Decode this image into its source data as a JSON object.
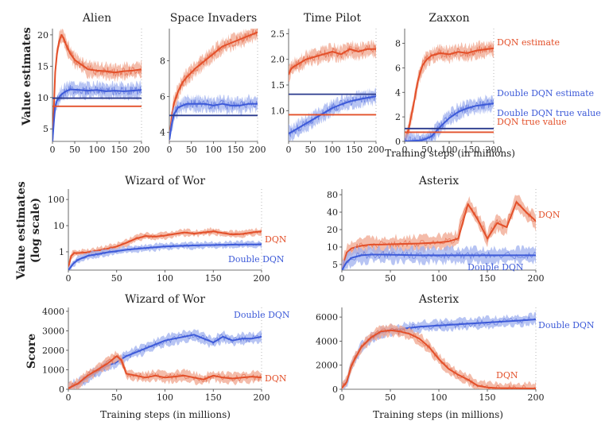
{
  "figure": {
    "ylabel_top": "Value estimates",
    "ylabel_mid_line1": "Value estimates",
    "ylabel_mid_line2": "(log scale)",
    "ylabel_bottom": "Score",
    "xlabel": "Training steps (in millions)"
  },
  "colors": {
    "dqn": "#e3502a",
    "double_dqn": "#3d5ad8",
    "dqn_band": "#f0a58e",
    "ddqn_band": "#9fb0ef",
    "true_line_dark": "#2a3a8c"
  },
  "chart_data": [
    {
      "id": "alien",
      "type": "line",
      "title": "Alien",
      "xlim": [
        0,
        200
      ],
      "ylim": [
        3,
        21
      ],
      "xticks": [
        0,
        50,
        100,
        150,
        200
      ],
      "yticks": [
        5,
        10,
        15,
        20
      ],
      "xtick_labels": [
        "0",
        "50",
        "100",
        "150",
        "200"
      ],
      "ytick_labels": [
        "5",
        "10",
        "15",
        "20"
      ],
      "series": [
        {
          "x": [
            0,
            3,
            6,
            10,
            15,
            20,
            25,
            30,
            40,
            50,
            60,
            70,
            80,
            100,
            120,
            140,
            160,
            180,
            200
          ],
          "y": [
            3,
            8,
            14,
            17,
            19,
            20,
            19.5,
            18.5,
            17,
            16,
            15.5,
            15,
            14.5,
            14.3,
            14.2,
            14,
            14.2,
            14.3,
            14.5
          ],
          "color": "dqn"
        },
        {
          "x": [
            0,
            3,
            6,
            10,
            20,
            30,
            40,
            60,
            80,
            100,
            120,
            140,
            160,
            180,
            200
          ],
          "y": [
            3,
            6,
            8.5,
            9.5,
            10.5,
            11,
            11.3,
            11.2,
            11.1,
            11.2,
            11,
            11.1,
            11,
            11.1,
            11.2
          ],
          "color": "double_dqn"
        }
      ],
      "hlines": [
        {
          "y": 9.9,
          "color": "true_line_dark"
        },
        {
          "y": 8.6,
          "color": "dqn"
        }
      ]
    },
    {
      "id": "space-invaders",
      "type": "line",
      "title": "Space Invaders",
      "xlim": [
        0,
        200
      ],
      "ylim": [
        3.5,
        9.8
      ],
      "xticks": [
        0,
        50,
        100,
        150,
        200
      ],
      "yticks": [
        4,
        6,
        8
      ],
      "xtick_labels": [
        "0",
        "50",
        "100",
        "150",
        "200"
      ],
      "ytick_labels": [
        "4",
        "6",
        "8"
      ],
      "series": [
        {
          "x": [
            0,
            5,
            10,
            20,
            30,
            40,
            60,
            80,
            100,
            120,
            140,
            160,
            180,
            200
          ],
          "y": [
            3.6,
            4.8,
            5.6,
            6.3,
            6.8,
            7.1,
            7.6,
            8.0,
            8.4,
            8.8,
            9.0,
            9.2,
            9.4,
            9.6
          ],
          "color": "dqn"
        },
        {
          "x": [
            0,
            5,
            10,
            20,
            30,
            40,
            60,
            80,
            100,
            120,
            140,
            160,
            180,
            200
          ],
          "y": [
            3.6,
            4.4,
            5.0,
            5.4,
            5.5,
            5.6,
            5.6,
            5.6,
            5.5,
            5.6,
            5.5,
            5.5,
            5.6,
            5.6
          ],
          "color": "double_dqn"
        }
      ],
      "hlines": [
        {
          "y": 4.95,
          "color": "true_line_dark"
        }
      ]
    },
    {
      "id": "time-pilot",
      "type": "line",
      "title": "Time Pilot",
      "xlim": [
        0,
        200
      ],
      "ylim": [
        0.4,
        2.6
      ],
      "xticks": [
        0,
        50,
        100,
        150,
        200
      ],
      "yticks": [
        1.0,
        1.5,
        2.0,
        2.5
      ],
      "xtick_labels": [
        "0",
        "50",
        "100",
        "150",
        "200"
      ],
      "ytick_labels": [
        "1.0",
        "1.5",
        "2.0",
        "2.5"
      ],
      "series": [
        {
          "x": [
            0,
            5,
            10,
            20,
            30,
            40,
            60,
            80,
            100,
            120,
            140,
            160,
            180,
            200
          ],
          "y": [
            1.7,
            1.8,
            1.85,
            1.9,
            1.95,
            2.0,
            2.05,
            2.1,
            2.15,
            2.1,
            2.2,
            2.15,
            2.2,
            2.2
          ],
          "color": "dqn"
        },
        {
          "x": [
            0,
            10,
            20,
            40,
            60,
            80,
            100,
            120,
            140,
            160,
            180,
            200
          ],
          "y": [
            0.55,
            0.6,
            0.65,
            0.75,
            0.85,
            0.95,
            1.05,
            1.12,
            1.18,
            1.22,
            1.25,
            1.28
          ],
          "color": "double_dqn"
        }
      ],
      "hlines": [
        {
          "y": 1.32,
          "color": "true_line_dark"
        },
        {
          "y": 0.92,
          "color": "dqn"
        }
      ]
    },
    {
      "id": "zaxxon",
      "type": "line",
      "title": "Zaxxon",
      "xlim": [
        0,
        200
      ],
      "ylim": [
        0,
        9.2
      ],
      "xticks": [
        0,
        50,
        100,
        150,
        200
      ],
      "yticks": [
        0,
        2,
        4,
        6,
        8
      ],
      "xtick_labels": [
        "0",
        "50",
        "100",
        "150",
        "200"
      ],
      "ytick_labels": [
        "0",
        "2",
        "4",
        "6",
        "8"
      ],
      "series": [
        {
          "name": "DQN estimate",
          "x": [
            0,
            5,
            10,
            20,
            30,
            40,
            50,
            60,
            80,
            100,
            120,
            140,
            160,
            180,
            200
          ],
          "y": [
            0,
            0.5,
            1.2,
            3.0,
            5.0,
            6.2,
            6.7,
            7.0,
            7.2,
            7.1,
            7.3,
            7.2,
            7.4,
            7.5,
            7.6
          ],
          "color": "dqn"
        },
        {
          "name": "Double DQN estimate",
          "x": [
            0,
            20,
            40,
            60,
            80,
            100,
            120,
            140,
            160,
            180,
            200
          ],
          "y": [
            0,
            0.05,
            0.1,
            0.4,
            1.2,
            1.9,
            2.4,
            2.7,
            2.9,
            3.0,
            3.1
          ],
          "color": "double_dqn"
        }
      ],
      "hlines": [
        {
          "y": 1.05,
          "color": "true_line_dark",
          "label": "Double DQN true value"
        },
        {
          "y": 0.75,
          "color": "dqn",
          "label": "DQN true value"
        }
      ]
    },
    {
      "id": "wizard-of-wor-value",
      "type": "line",
      "title": "Wizard of Wor",
      "yscale": "log",
      "xlim": [
        0,
        200
      ],
      "ylim": [
        0.2,
        250
      ],
      "xticks": [
        0,
        50,
        100,
        150,
        200
      ],
      "yticks": [
        1,
        10,
        100
      ],
      "xtick_labels": [
        "0",
        "50",
        "100",
        "150",
        "200"
      ],
      "ytick_labels": [
        "1",
        "10",
        "100"
      ],
      "series": [
        {
          "name": "DQN",
          "x": [
            0,
            3,
            6,
            10,
            20,
            30,
            40,
            50,
            60,
            70,
            80,
            90,
            100,
            110,
            120,
            130,
            140,
            150,
            160,
            170,
            180,
            190,
            200
          ],
          "y": [
            0.25,
            0.7,
            0.9,
            0.9,
            0.95,
            1.1,
            1.3,
            1.6,
            2.2,
            3.2,
            4.0,
            3.8,
            4.2,
            4.8,
            5.5,
            5.0,
            5.5,
            6.0,
            5.2,
            4.6,
            4.8,
            5.5,
            6.0
          ],
          "color": "dqn"
        },
        {
          "name": "Double DQN",
          "x": [
            0,
            5,
            10,
            20,
            40,
            60,
            80,
            100,
            120,
            140,
            160,
            180,
            200
          ],
          "y": [
            0.2,
            0.35,
            0.5,
            0.7,
            0.95,
            1.2,
            1.4,
            1.6,
            1.7,
            1.8,
            1.85,
            1.9,
            1.9
          ],
          "color": "double_dqn"
        }
      ]
    },
    {
      "id": "asterix-value",
      "type": "line",
      "title": "Asterix",
      "yscale": "log",
      "xlim": [
        0,
        200
      ],
      "ylim": [
        4,
        100
      ],
      "xticks": [
        0,
        50,
        100,
        150,
        200
      ],
      "yticks": [
        5,
        10,
        20,
        40,
        80
      ],
      "xtick_labels": [
        "0",
        "50",
        "100",
        "150",
        "200"
      ],
      "ytick_labels": [
        "5",
        "10",
        "20",
        "40",
        "80"
      ],
      "series": [
        {
          "name": "DQN",
          "x": [
            0,
            5,
            10,
            20,
            30,
            40,
            60,
            80,
            100,
            110,
            120,
            130,
            140,
            150,
            160,
            170,
            180,
            190,
            200
          ],
          "y": [
            4,
            8,
            9.5,
            10.5,
            11,
            11,
            11.3,
            11.5,
            12,
            12.5,
            14,
            55,
            30,
            14,
            26,
            22,
            60,
            40,
            28
          ],
          "color": "dqn"
        },
        {
          "name": "Double DQN",
          "x": [
            0,
            5,
            10,
            20,
            30,
            40,
            60,
            80,
            100,
            120,
            140,
            160,
            180,
            200
          ],
          "y": [
            4,
            5.5,
            6.5,
            7.2,
            7.4,
            7.4,
            7.3,
            7.2,
            7.2,
            7.2,
            7.2,
            7.2,
            7.2,
            7.2
          ],
          "color": "double_dqn"
        }
      ]
    },
    {
      "id": "wizard-of-wor-score",
      "type": "line",
      "title": "Wizard of Wor",
      "xlim": [
        0,
        200
      ],
      "ylim": [
        0,
        4200
      ],
      "xticks": [
        0,
        50,
        100,
        150,
        200
      ],
      "yticks": [
        0,
        1000,
        2000,
        3000,
        4000
      ],
      "xtick_labels": [
        "0",
        "50",
        "100",
        "150",
        "200"
      ],
      "ytick_labels": [
        "0",
        "1000",
        "2000",
        "3000",
        "4000"
      ],
      "series": [
        {
          "name": "Double DQN",
          "x": [
            0,
            10,
            20,
            30,
            40,
            50,
            60,
            70,
            80,
            90,
            100,
            110,
            120,
            130,
            140,
            150,
            160,
            170,
            180,
            190,
            200
          ],
          "y": [
            50,
            300,
            600,
            900,
            1200,
            1400,
            1700,
            1900,
            2100,
            2300,
            2500,
            2600,
            2700,
            2800,
            2600,
            2400,
            2700,
            2500,
            2600,
            2600,
            2700
          ],
          "color": "double_dqn"
        },
        {
          "name": "DQN",
          "x": [
            0,
            10,
            20,
            30,
            40,
            50,
            55,
            60,
            70,
            80,
            90,
            100,
            110,
            120,
            130,
            140,
            150,
            160,
            170,
            180,
            190,
            200
          ],
          "y": [
            50,
            300,
            700,
            1000,
            1300,
            1700,
            1500,
            800,
            700,
            600,
            700,
            600,
            650,
            700,
            600,
            500,
            700,
            600,
            550,
            600,
            650,
            600
          ],
          "color": "dqn"
        }
      ]
    },
    {
      "id": "asterix-score",
      "type": "line",
      "title": "Asterix",
      "xlim": [
        0,
        200
      ],
      "ylim": [
        0,
        6800
      ],
      "xticks": [
        0,
        50,
        100,
        150,
        200
      ],
      "yticks": [
        0,
        2000,
        4000,
        6000
      ],
      "xtick_labels": [
        "0",
        "50",
        "100",
        "150",
        "200"
      ],
      "ytick_labels": [
        "0",
        "2000",
        "4000",
        "6000"
      ],
      "series": [
        {
          "name": "Double DQN",
          "x": [
            0,
            5,
            10,
            20,
            30,
            40,
            50,
            60,
            80,
            100,
            120,
            140,
            160,
            180,
            200
          ],
          "y": [
            100,
            600,
            2000,
            3500,
            4200,
            4700,
            4900,
            5000,
            5200,
            5300,
            5400,
            5500,
            5600,
            5700,
            5800
          ],
          "color": "double_dqn"
        },
        {
          "name": "DQN",
          "x": [
            0,
            5,
            10,
            20,
            30,
            40,
            50,
            60,
            70,
            80,
            90,
            100,
            110,
            120,
            130,
            140,
            150,
            160,
            180,
            200
          ],
          "y": [
            100,
            600,
            2000,
            3500,
            4300,
            4800,
            4900,
            4800,
            4600,
            4200,
            3500,
            2500,
            1700,
            1200,
            800,
            300,
            150,
            100,
            80,
            60
          ],
          "color": "dqn"
        }
      ]
    }
  ],
  "annotations": {
    "zaxxon_dqn_estimate": "DQN estimate",
    "zaxxon_ddqn_estimate": "Double DQN estimate",
    "zaxxon_ddqn_true": "Double DQN true value",
    "zaxxon_dqn_true": "DQN true value",
    "wow_value_dqn": "DQN",
    "wow_value_ddqn": "Double DQN",
    "asterix_value_dqn": "DQN",
    "asterix_value_ddqn": "Double DQN",
    "wow_score_ddqn": "Double DQN",
    "wow_score_dqn": "DQN",
    "asterix_score_ddqn": "Double DQN",
    "asterix_score_dqn": "DQN"
  }
}
